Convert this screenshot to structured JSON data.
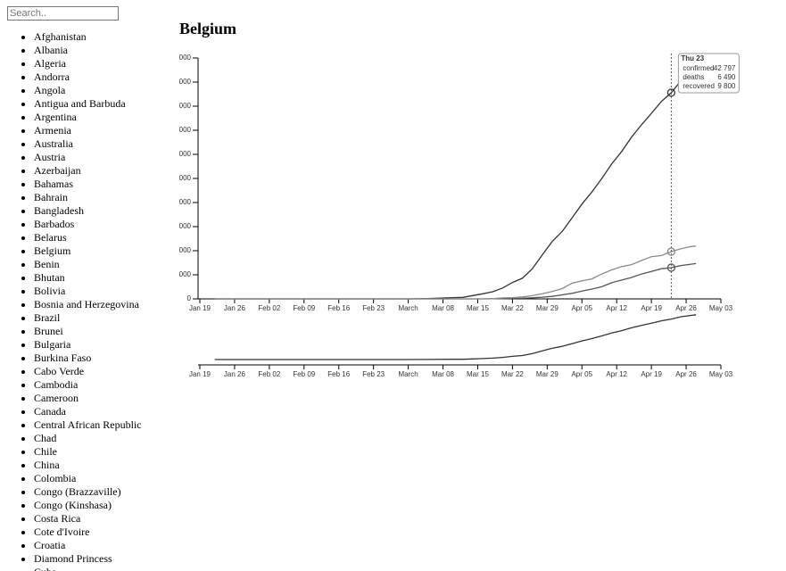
{
  "sidebar": {
    "search_placeholder": "Search..",
    "countries": [
      "Afghanistan",
      "Albania",
      "Algeria",
      "Andorra",
      "Angola",
      "Antigua and Barbuda",
      "Argentina",
      "Armenia",
      "Australia",
      "Austria",
      "Azerbaijan",
      "Bahamas",
      "Bahrain",
      "Bangladesh",
      "Barbados",
      "Belarus",
      "Belgium",
      "Benin",
      "Bhutan",
      "Bolivia",
      "Bosnia and Herzegovina",
      "Brazil",
      "Brunei",
      "Bulgaria",
      "Burkina Faso",
      "Cabo Verde",
      "Cambodia",
      "Cameroon",
      "Canada",
      "Central African Republic",
      "Chad",
      "Chile",
      "China",
      "Colombia",
      "Congo (Brazzaville)",
      "Congo (Kinshasa)",
      "Costa Rica",
      "Cote d'Ivoire",
      "Croatia",
      "Diamond Princess",
      "Cuba"
    ]
  },
  "chart_data": {
    "type": "line",
    "title": "Belgium",
    "x": [
      "Jan 22",
      "Feb 01",
      "Feb 15",
      "Mar 01",
      "Mar 05",
      "Mar 10",
      "Mar 12",
      "Mar 14",
      "Mar 16",
      "Mar 18",
      "Mar 20",
      "Mar 22",
      "Mar 24",
      "Mar 26",
      "Mar 28",
      "Mar 30",
      "Apr 01",
      "Apr 03",
      "Apr 05",
      "Apr 07",
      "Apr 09",
      "Apr 11",
      "Apr 13",
      "Apr 15",
      "Apr 17",
      "Apr 19",
      "Apr 21",
      "Apr 23",
      "Apr 25",
      "Apr 27",
      "Apr 28"
    ],
    "series": [
      {
        "name": "confirmed",
        "color": "#333333",
        "values": [
          0,
          0,
          1,
          2,
          50,
          267,
          314,
          689,
          1058,
          1486,
          2257,
          3401,
          4269,
          6235,
          9134,
          11899,
          13964,
          16770,
          19691,
          22194,
          24983,
          28018,
          30589,
          33573,
          36138,
          38496,
          40956,
          42797,
          45325,
          46687,
          47334
        ]
      },
      {
        "name": "deaths",
        "color": "#555555",
        "values": [
          0,
          0,
          0,
          0,
          0,
          0,
          3,
          3,
          4,
          14,
          37,
          88,
          122,
          220,
          353,
          513,
          828,
          1143,
          1632,
          2035,
          2523,
          3346,
          3903,
          4440,
          5163,
          5683,
          6262,
          6490,
          6917,
          7207,
          7331
        ]
      },
      {
        "name": "recovered",
        "color": "#8a8a8a",
        "values": [
          0,
          0,
          1,
          1,
          1,
          1,
          1,
          1,
          1,
          31,
          204,
          263,
          410,
          675,
          1063,
          1527,
          2132,
          3247,
          3751,
          4157,
          5164,
          6017,
          6707,
          7107,
          7961,
          8757,
          9002,
          9800,
          10417,
          10878,
          10943
        ]
      }
    ],
    "ylim": [
      0,
      50000
    ],
    "yticks": [
      0,
      {
        "value": 5000,
        "label": "5 000"
      },
      {
        "value": 10000,
        "label": "10 000"
      },
      {
        "value": 15000,
        "label": "15 000"
      },
      {
        "value": 20000,
        "label": "20 000"
      },
      {
        "value": 25000,
        "label": "25 000"
      },
      {
        "value": 30000,
        "label": "30 000"
      },
      {
        "value": 35000,
        "label": "35 000"
      },
      {
        "value": 40000,
        "label": "40 000"
      },
      {
        "value": 45000,
        "label": "45 000"
      },
      {
        "value": 50000,
        "label": "50 000"
      }
    ],
    "xlim": [
      "Jan 19",
      "May 03"
    ],
    "xticks": [
      "Jan 19",
      "Jan 26",
      "Feb 02",
      "Feb 09",
      "Feb 16",
      "Feb 23",
      {
        "value": "Mar 01",
        "label": "March"
      },
      "Mar 08",
      "Mar 15",
      "Mar 22",
      "Mar 29",
      "Apr 05",
      "Apr 12",
      "Apr 19",
      "Apr 26",
      "May 03"
    ],
    "grid": false,
    "tooltip": {
      "title": "Thu 23",
      "values": [
        42797,
        6490,
        9800
      ],
      "value_labels": [
        "42 797",
        "6 490",
        "9 800"
      ]
    }
  }
}
